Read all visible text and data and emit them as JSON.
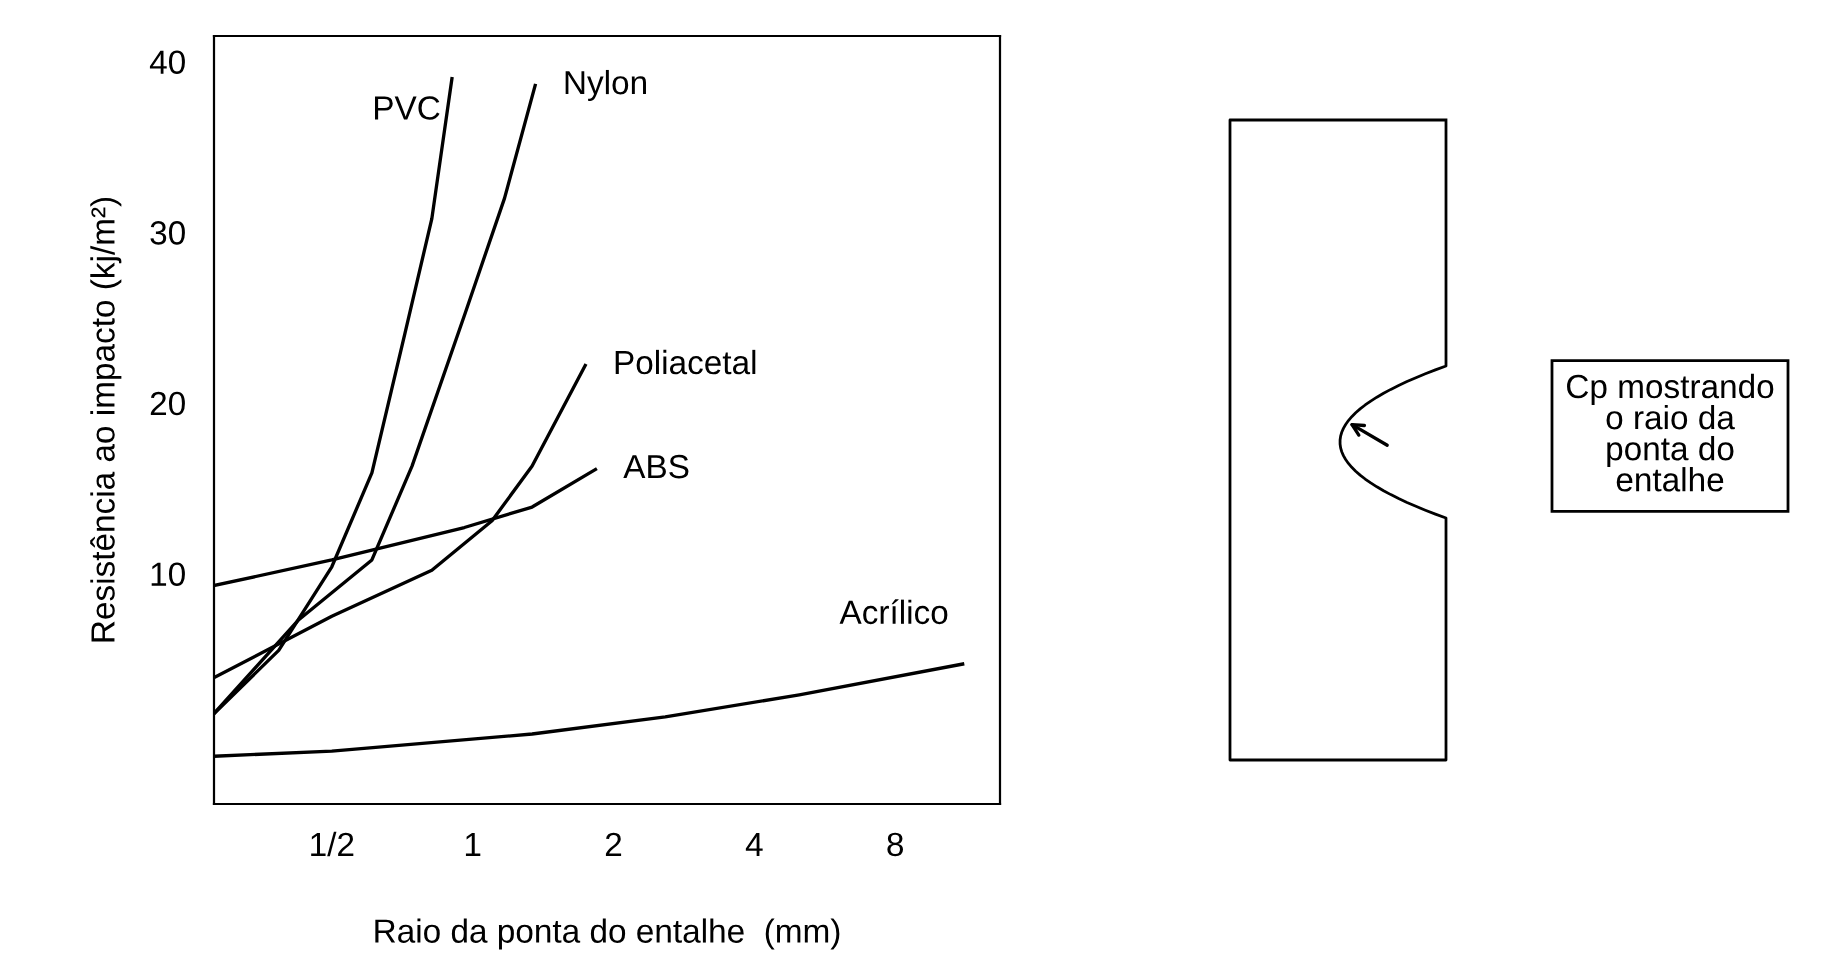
{
  "chart_data": {
    "type": "line",
    "xlabel": "Raio da ponta do entalhe  (mm)",
    "ylabel": "Resistência ao impacto (kj/m²)",
    "log": "x",
    "line_style": "solid",
    "xlim": [
      0.28,
      13.4
    ],
    "ylim": [
      -3.5,
      41.5
    ],
    "xticks": [
      {
        "value": 0.5,
        "label": "1/2"
      },
      1,
      2,
      4,
      8
    ],
    "yticks": [
      10,
      20,
      30,
      40
    ],
    "series": [
      {
        "name": "PVC",
        "color": "#000000",
        "x": [
          0.28,
          0.385,
          0.5,
          0.609,
          0.717,
          0.818,
          0.903
        ],
        "values": [
          1.8,
          5.5,
          10.4,
          15.9,
          24.1,
          30.8,
          39.0
        ]
      },
      {
        "name": "Nylon",
        "color": "#000000",
        "x": [
          0.28,
          0.425,
          0.609,
          0.742,
          0.965,
          1.17,
          1.36
        ],
        "values": [
          1.8,
          7.3,
          10.8,
          16.3,
          25.3,
          32.0,
          38.6
        ]
      },
      {
        "name": "Poliacetal",
        "color": "#000000",
        "x": [
          0.28,
          0.5,
          0.818,
          1.1,
          1.34,
          1.74
        ],
        "values": [
          3.9,
          7.5,
          10.2,
          13.1,
          16.3,
          22.2
        ]
      },
      {
        "name": "ABS",
        "color": "#000000",
        "x": [
          0.28,
          0.5,
          0.96,
          1.34,
          1.83
        ],
        "values": [
          9.3,
          10.8,
          12.7,
          13.9,
          16.1
        ]
      },
      {
        "name": "Acrílico",
        "color": "#000000",
        "x": [
          0.28,
          0.5,
          1.34,
          2.58,
          4.99,
          11.15
        ],
        "values": [
          -0.7,
          -0.4,
          0.6,
          1.6,
          2.9,
          4.7
        ]
      }
    ],
    "annotations": [
      "Cp mostrando\no raio da\nponta do\nentalhe"
    ]
  }
}
